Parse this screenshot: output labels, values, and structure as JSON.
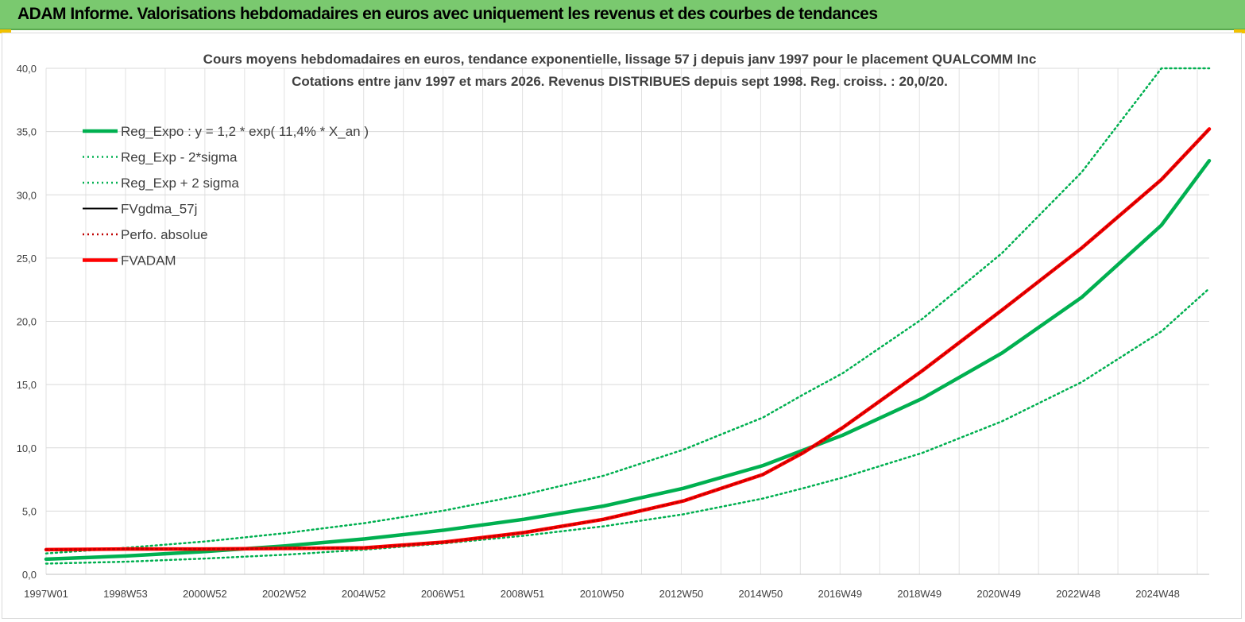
{
  "banner": {
    "title": "ADAM Informe. Valorisations hebdomadaires en euros avec uniquement les revenus et des courbes de tendances",
    "color": "#7ac96f"
  },
  "chart_data": {
    "type": "line",
    "title": "Cours moyens hebdomadaires en euros, tendance exponentielle, lissage 57 j depuis janv 1997 pour le placement QUALCOMM Inc",
    "subtitle": "Cotations entre janv 1997 et mars 2026. Revenus DISTRIBUES depuis sept 1998. Reg. croiss. : 20,0/20.",
    "xlabel": "",
    "ylabel": "",
    "ylim": [
      0,
      40
    ],
    "yticks": [
      "0,0",
      "5,0",
      "10,0",
      "15,0",
      "20,0",
      "25,0",
      "30,0",
      "35,0",
      "40,0"
    ],
    "x_tick_labels": [
      "1997W01",
      "1998W53",
      "2000W52",
      "2002W52",
      "2004W52",
      "2006W51",
      "2008W51",
      "2010W50",
      "2012W50",
      "2014W50",
      "2016W49",
      "2018W49",
      "2020W49",
      "2022W48",
      "2024W48"
    ],
    "grid": true,
    "legend_position": "top-left",
    "x": [
      1997.0,
      1999.0,
      2001.0,
      2003.0,
      2005.0,
      2007.0,
      2009.0,
      2011.0,
      2013.0,
      2015.0,
      2016.0,
      2017.0,
      2019.0,
      2021.0,
      2023.0,
      2025.0,
      2026.2
    ],
    "series": [
      {
        "name": "Reg_Expo : y = 1,2 * exp( 11,4% *  X_an )",
        "color": "#00b050",
        "style": "solid-thick",
        "values": [
          1.2,
          1.45,
          1.8,
          2.25,
          2.8,
          3.5,
          4.35,
          5.4,
          6.8,
          8.6,
          9.8,
          11.0,
          13.9,
          17.5,
          21.9,
          27.6,
          32.7
        ]
      },
      {
        "name": "Reg_Exp - 2*sigma",
        "color": "#00b050",
        "style": "dotted",
        "values": [
          0.85,
          1.0,
          1.25,
          1.55,
          1.95,
          2.45,
          3.05,
          3.8,
          4.75,
          6.0,
          6.8,
          7.65,
          9.6,
          12.1,
          15.2,
          19.2,
          22.6
        ]
      },
      {
        "name": "Reg_Exp + 2 sigma",
        "color": "#00b050",
        "style": "dotted",
        "values": [
          1.65,
          2.1,
          2.6,
          3.25,
          4.05,
          5.05,
          6.3,
          7.8,
          9.85,
          12.4,
          14.2,
          15.9,
          20.2,
          25.4,
          31.8,
          40.0,
          40.0
        ]
      },
      {
        "name": "FVgdma_57j",
        "color": "#000000",
        "style": "solid",
        "values": [
          1.95,
          2.0,
          2.0,
          2.05,
          2.1,
          2.55,
          3.3,
          4.35,
          5.8,
          7.9,
          9.6,
          11.6,
          16.1,
          20.9,
          25.8,
          31.2,
          35.2
        ]
      },
      {
        "name": "Perfo. absolue",
        "color": "#c00000",
        "style": "dotted",
        "values": [
          1.95,
          2.0,
          2.0,
          2.05,
          2.1,
          2.55,
          3.3,
          4.35,
          5.8,
          7.9,
          9.6,
          11.6,
          16.1,
          20.9,
          25.8,
          31.2,
          35.2
        ]
      },
      {
        "name": "FVADAM",
        "color": "#ff0000",
        "style": "solid-thick",
        "values": [
          1.95,
          2.0,
          2.0,
          2.05,
          2.1,
          2.55,
          3.3,
          4.35,
          5.8,
          7.9,
          9.6,
          11.6,
          16.1,
          20.9,
          25.8,
          31.2,
          35.2
        ]
      }
    ]
  }
}
